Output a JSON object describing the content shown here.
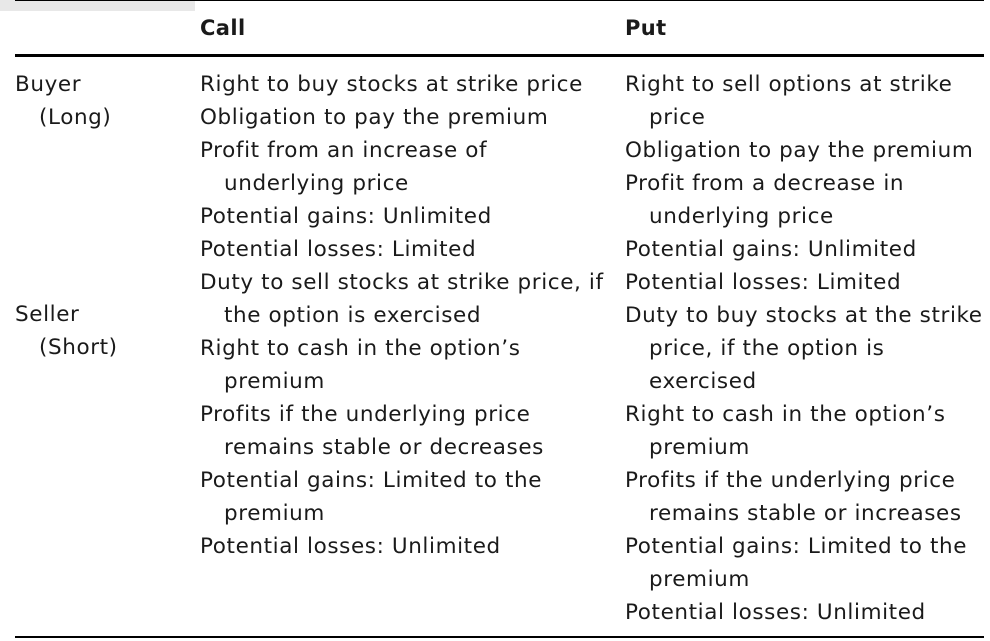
{
  "table": {
    "headers": {
      "corner": "",
      "call": "Call",
      "put": "Put"
    },
    "rows": [
      {
        "label": "Buyer",
        "sublabel": "(Long)",
        "call": [
          "Right to buy stocks at strike price",
          "Obligation to pay the premium",
          "Profit from an increase of underlying price",
          "Potential gains: Unlimited",
          "Potential losses: Limited"
        ],
        "put": [
          "Right to sell options at strike price",
          "Obligation to pay the premium",
          "Profit from a decrease in underlying price",
          "Potential gains: Unlimited",
          "Potential losses: Limited"
        ]
      },
      {
        "label": "Seller",
        "sublabel": "(Short)",
        "call": [
          "Duty to sell stocks at strike price, if the option is exercised",
          "Right to cash in the option’s premium",
          "Profits if the underlying price remains stable or decreases",
          "Potential gains: Limited to the premium",
          "Potential losses: Unlimited"
        ],
        "put": [
          "Duty to buy stocks at the strike price, if the option is exercised",
          "Right to cash in the option’s premium",
          "Profits if the underlying price remains stable or increases",
          "Potential gains: Limited to the premium",
          "Potential losses: Unlimited"
        ]
      }
    ]
  }
}
